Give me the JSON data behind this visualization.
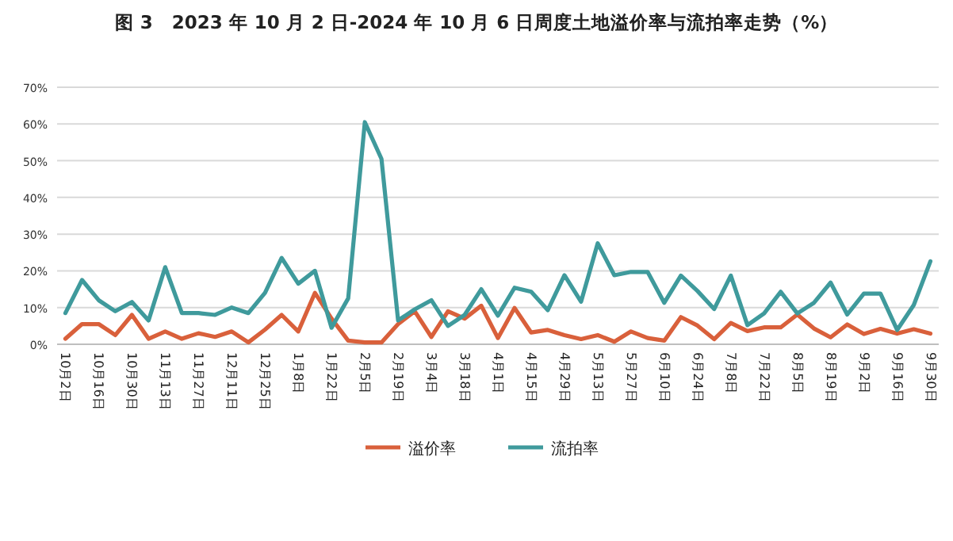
{
  "chart_data": {
    "type": "line",
    "title": "图 3　2023 年 10 月 2 日-2024 年 10 月 6 日周度土地溢价率与流拍率走势（%）",
    "categories": [
      "10月2日",
      null,
      "10月16日",
      null,
      "10月30日",
      null,
      "11月13日",
      null,
      "11月27日",
      null,
      "12月11日",
      null,
      "12月25日",
      null,
      "1月8日",
      null,
      "1月22日",
      null,
      "2月5日",
      null,
      "2月19日",
      null,
      "3月4日",
      null,
      "3月18日",
      null,
      "4月1日",
      null,
      "4月15日",
      null,
      "4月29日",
      null,
      "5月13日",
      null,
      "5月27日",
      null,
      "6月10日",
      null,
      "6月24日",
      null,
      "7月8日",
      null,
      "7月22日",
      null,
      "8月5日",
      null,
      "8月19日",
      null,
      "9月2日",
      null,
      "9月16日",
      null,
      "9月30日"
    ],
    "series": [
      {
        "name": "溢价率",
        "color": "#d9603b",
        "values": [
          1.5,
          5.5,
          5.5,
          2.5,
          8,
          1.5,
          3.5,
          1.5,
          3,
          2,
          3.5,
          0.5,
          4,
          8,
          3.5,
          14,
          7,
          1,
          0.5,
          0.5,
          5.5,
          9,
          2,
          9,
          7,
          10.5,
          1.7,
          9.9,
          3.2,
          3.9,
          2.5,
          1.4,
          2.5,
          0.7,
          3.5,
          1.7,
          1,
          7.4,
          5.1,
          1.4,
          5.8,
          3.6,
          4.6,
          4.6,
          8.1,
          4.3,
          1.9,
          5.4,
          2.8,
          4.2,
          2.9,
          4.1,
          2.9
        ]
      },
      {
        "name": "流拍率",
        "color": "#3f9a9c",
        "values": [
          8.5,
          17.5,
          12,
          9,
          11.5,
          6.5,
          21,
          8.5,
          8.5,
          8,
          10,
          8.5,
          14,
          23.5,
          16.5,
          20,
          4.5,
          12.5,
          60.5,
          50.5,
          6.5,
          9.5,
          12,
          5,
          8,
          15,
          7.8,
          15.4,
          14.3,
          9.3,
          18.8,
          11.6,
          27.5,
          18.8,
          19.7,
          19.7,
          11.3,
          18.7,
          14.5,
          9.6,
          18.7,
          5.2,
          8.4,
          14.3,
          8.4,
          11.3,
          16.8,
          8.1,
          13.8,
          13.8,
          3.9,
          10.7,
          22.6
        ]
      }
    ],
    "ylim": [
      0,
      70
    ],
    "yticks": [
      {
        "value": 0,
        "label": "0%"
      },
      {
        "value": 10,
        "label": "10%"
      },
      {
        "value": 20,
        "label": "20%"
      },
      {
        "value": 30,
        "label": "30%"
      },
      {
        "value": 40,
        "label": "40%"
      },
      {
        "value": 50,
        "label": "50%"
      },
      {
        "value": 60,
        "label": "60%"
      },
      {
        "value": 70,
        "label": "70%"
      }
    ],
    "grid": "y",
    "legend": "bottom",
    "marker": "none",
    "line_style": "solid"
  }
}
